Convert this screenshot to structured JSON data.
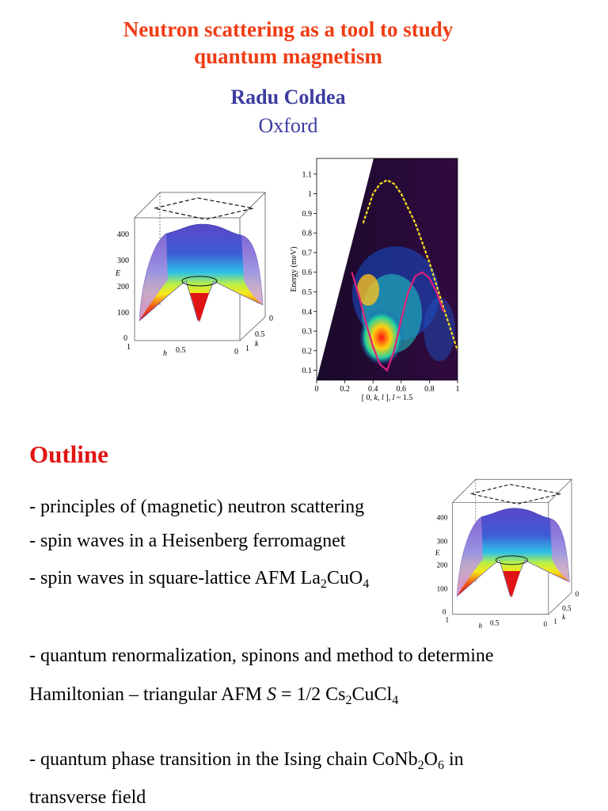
{
  "header": {
    "title_line1": "Neutron scattering as a tool to study",
    "title_line2": "quantum magnetism",
    "author": "Radu Coldea",
    "affiliation": "Oxford"
  },
  "figure_3d": {
    "z_ticks": [
      "400",
      "300",
      "200",
      "100",
      "0"
    ],
    "z_label": "E",
    "h_label": "h",
    "k_label": "k",
    "h_ticks": [
      "1",
      "0.5",
      "0"
    ],
    "k_ticks": [
      "0",
      "0.5",
      "1"
    ]
  },
  "chart_data": {
    "type": "heatmap",
    "xlabel_prefix": "[ 0, ",
    "xlabel_k": "k",
    "xlabel_mid": ", ",
    "xlabel_l": "l",
    "xlabel_suffix": " ],  ",
    "xlabel_l2": "l",
    "xlabel_tail": " ~ 1.5",
    "ylabel": "Energy  (meV)",
    "xlim": [
      0,
      1
    ],
    "ylim": [
      0.05,
      1.18
    ],
    "x_ticks": [
      "0",
      "0.2",
      "0.4",
      "0.6",
      "0.8",
      "1"
    ],
    "y_ticks": [
      "0.1",
      "0.2",
      "0.3",
      "0.4",
      "0.5",
      "0.6",
      "0.7",
      "0.8",
      "0.9",
      "1",
      "1.1"
    ],
    "dispersion_upper": {
      "x": [
        0.33,
        0.4,
        0.45,
        0.5,
        0.55,
        0.6,
        0.7,
        0.8,
        0.9,
        1.0
      ],
      "y": [
        0.85,
        1.0,
        1.05,
        1.07,
        1.05,
        1.0,
        0.85,
        0.65,
        0.42,
        0.2
      ]
    },
    "dispersion_lower": {
      "x": [
        0.25,
        0.3,
        0.35,
        0.4,
        0.45,
        0.5,
        0.55,
        0.6,
        0.65,
        0.7,
        0.75,
        0.8,
        0.85,
        0.9
      ],
      "y": [
        0.6,
        0.48,
        0.34,
        0.22,
        0.13,
        0.1,
        0.2,
        0.36,
        0.5,
        0.58,
        0.6,
        0.57,
        0.5,
        0.4
      ]
    }
  },
  "outline": {
    "heading": "Outline",
    "items": [
      {
        "text": "- principles of  (magnetic) neutron scattering"
      },
      {
        "text": "- spin waves in a Heisenberg ferromagnet"
      },
      {
        "pre": "- spin waves in square-lattice AFM La",
        "s1": "2",
        "m1": "CuO",
        "s2": "4"
      },
      {
        "text": "- quantum renormalization, spinons and method to determine"
      },
      {
        "pre": "Hamiltonian – triangular AFM   ",
        "s_var": "S",
        "eq": " = 1/2    Cs",
        "s1": "2",
        "m1": "CuCl",
        "s2": "4"
      },
      {
        "pre": "- quantum phase transition in the Ising chain CoNb",
        "s1": "2",
        "m1": "O",
        "s2": "6",
        "post": " in"
      },
      {
        "text": "transverse field"
      }
    ]
  },
  "colors": {
    "title": "#f03c14",
    "author": "#3c3ca0",
    "outline_heading": "#e21414"
  }
}
